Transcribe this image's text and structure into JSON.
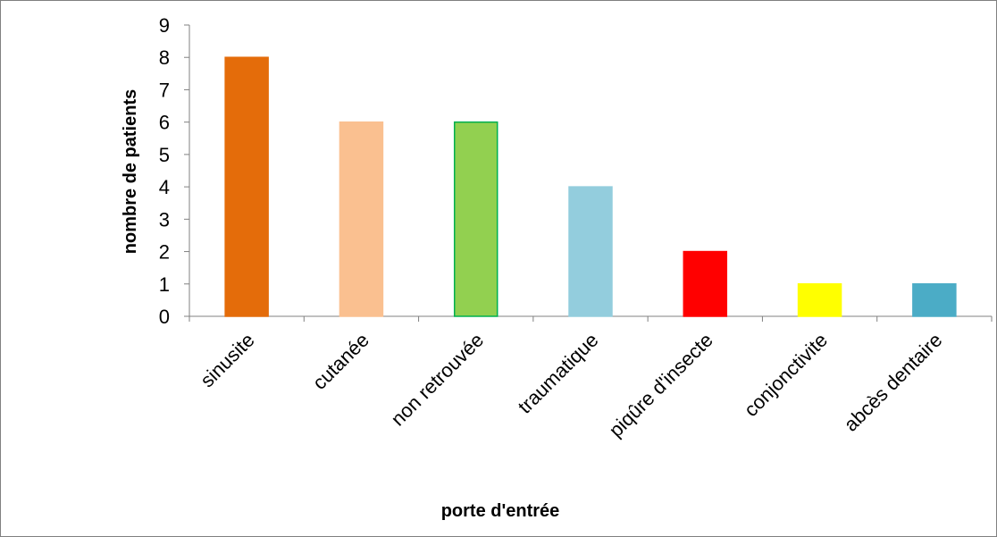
{
  "chart_data": {
    "type": "bar",
    "title": "",
    "xlabel": "porte d'entrée",
    "ylabel": "nombre de patients",
    "categories": [
      "sinusite",
      "cutanée",
      "non retrouvée",
      "traumatique",
      "piqûre d'insecte",
      "conjonctivite",
      "abcès dentaire"
    ],
    "values": [
      8,
      6,
      6,
      4,
      2,
      1,
      1
    ],
    "colors": [
      "#E46C0A",
      "#FAC090",
      "#92D050",
      "#93CDDD",
      "#FF0000",
      "#FFFF00",
      "#4BACC6"
    ],
    "border_colors": [
      "#E46C0A",
      "#FAC090",
      "#00B050",
      "#93CDDD",
      "#FF0000",
      "#FFFF00",
      "#4BACC6"
    ],
    "ylim": [
      0,
      9
    ],
    "yticks": [
      "0",
      "1",
      "2",
      "3",
      "4",
      "5",
      "6",
      "7",
      "8",
      "9"
    ],
    "grid": false,
    "legend": "none"
  }
}
